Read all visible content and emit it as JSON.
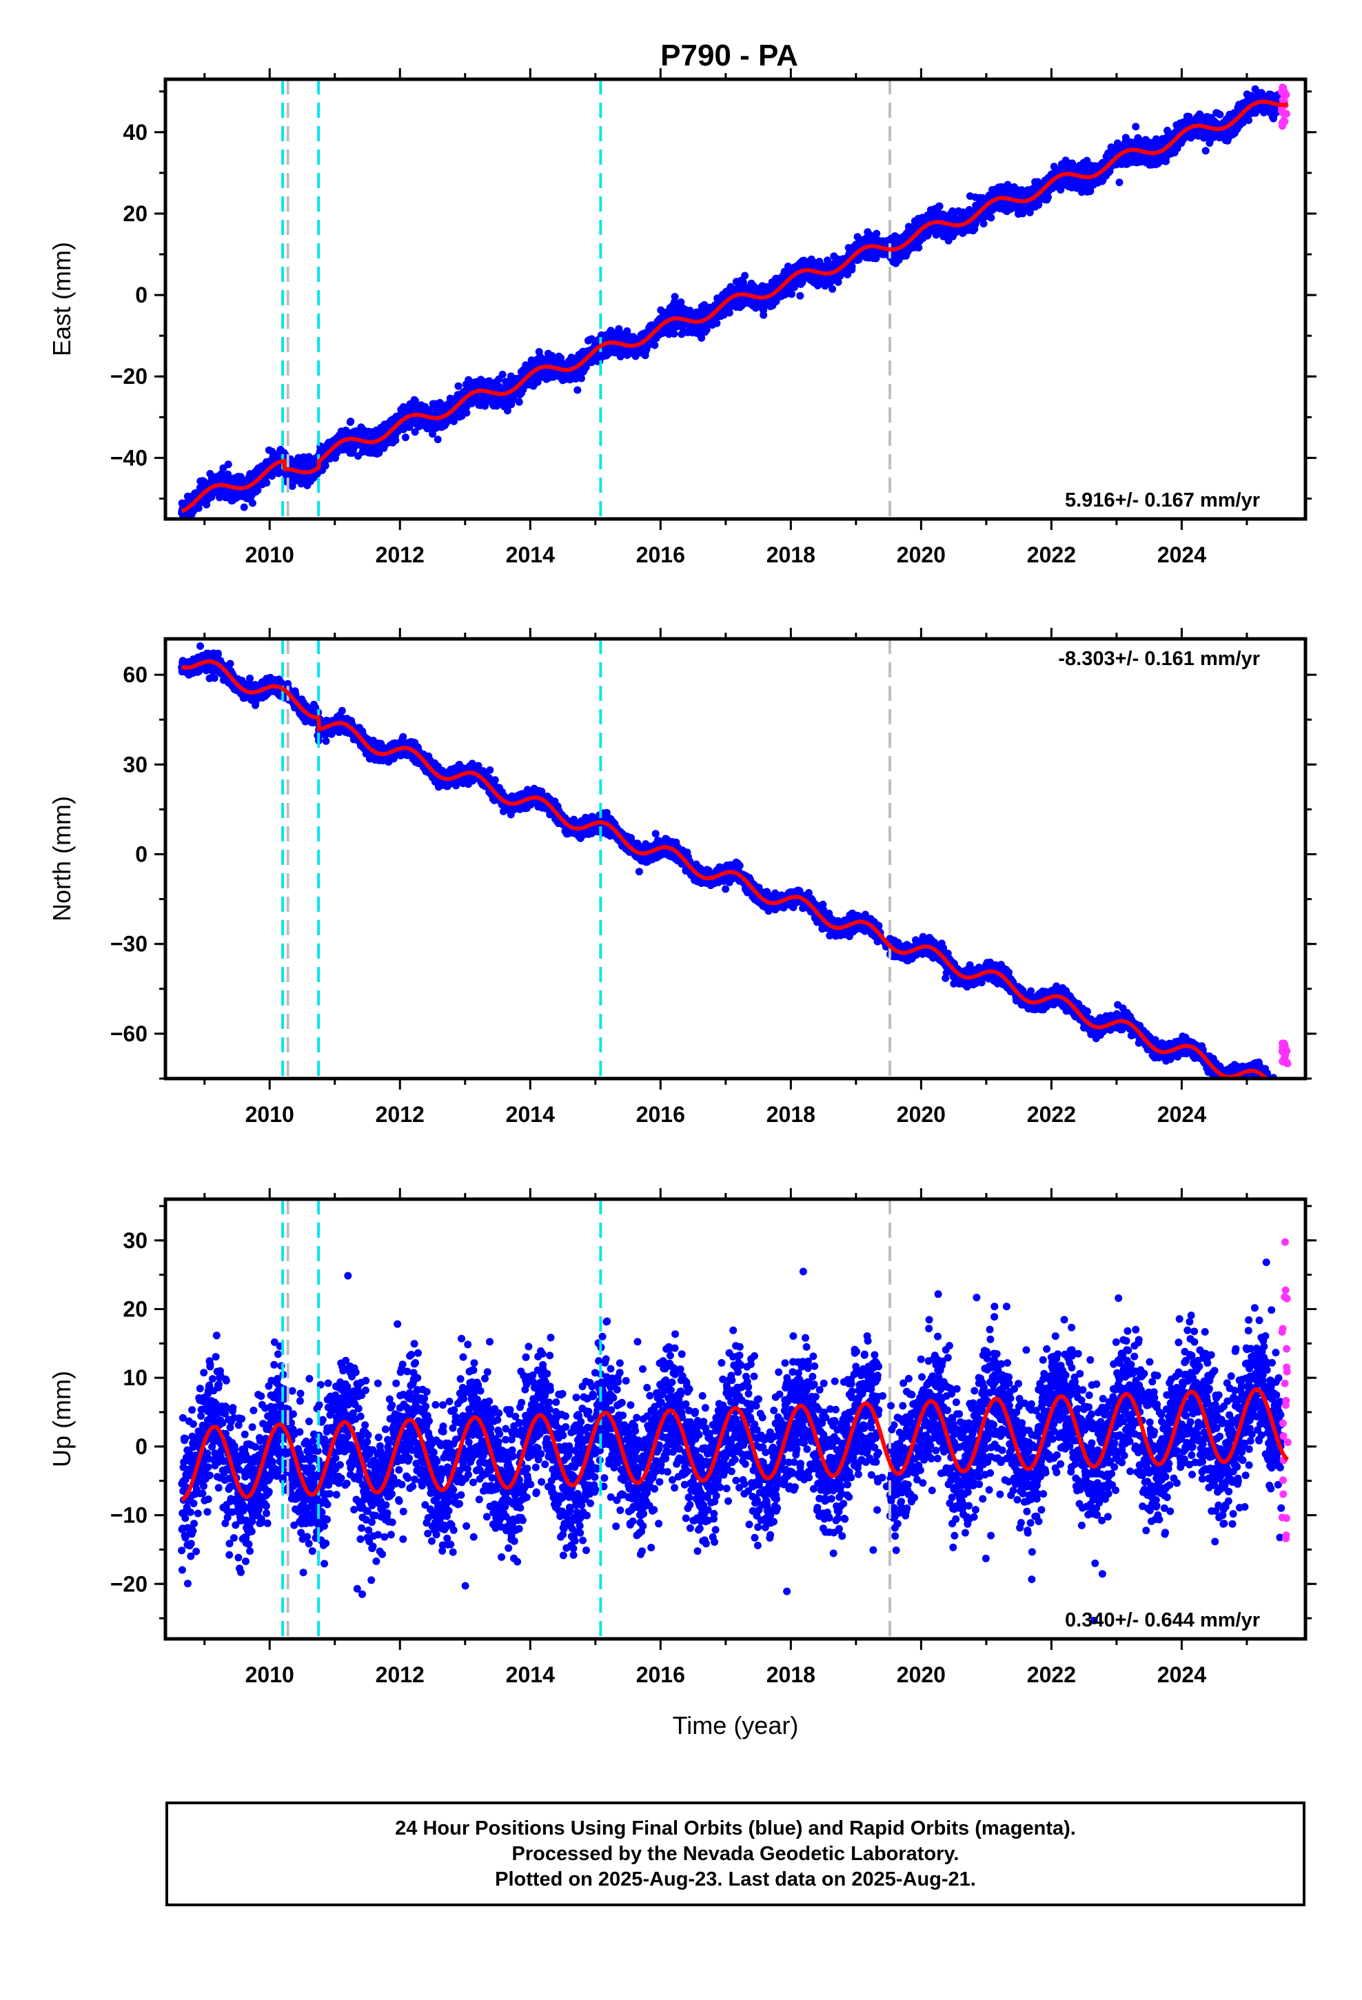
{
  "title": "P790 - PA",
  "colors": {
    "final_orbits": "#0000ff",
    "rapid_orbits": "#ff33ff",
    "model_fit": "#ff0000",
    "cyan_marker": "#00e5ee",
    "gray_marker": "#bfbfbf"
  },
  "chart_data": [
    {
      "type": "scatter",
      "name": "east",
      "ylabel": "East (mm)",
      "xlabel": "",
      "xlim": [
        2008.4,
        2025.9
      ],
      "ylim": [
        -55,
        53
      ],
      "xticks": [
        2010,
        2012,
        2014,
        2016,
        2018,
        2020,
        2022,
        2024
      ],
      "yticks": [
        -40,
        -20,
        0,
        20,
        40
      ],
      "rate_label": "5.916+/- 0.167 mm/yr",
      "rate_position": "bottom-right",
      "model": {
        "start": 2008.65,
        "end": 2025.63,
        "start_value": -51.5,
        "slope": 5.916,
        "annual_amplitude": 1.6,
        "scatter": 1.4,
        "offsets": [
          {
            "t": 2010.22,
            "dy": -2.0
          },
          {
            "t": 2010.75,
            "dy": 1.5
          }
        ]
      },
      "rapid_points": {
        "start": 2025.53,
        "end": 2025.63,
        "min": 41,
        "max": 51
      }
    },
    {
      "type": "scatter",
      "name": "north",
      "ylabel": "North (mm)",
      "xlabel": "",
      "xlim": [
        2008.4,
        2025.9
      ],
      "ylim": [
        -75,
        72
      ],
      "xticks": [
        2010,
        2012,
        2014,
        2016,
        2018,
        2020,
        2022,
        2024
      ],
      "yticks": [
        -60,
        -30,
        0,
        30,
        60
      ],
      "rate_label": "-8.303+/- 0.161 mm/yr",
      "rate_position": "top-right",
      "model": {
        "start": 2008.65,
        "end": 2025.63,
        "start_value": 65.5,
        "slope": -8.303,
        "annual_amplitude": 2.8,
        "scatter": 1.3,
        "offsets": [
          {
            "t": 2010.75,
            "dy": -4.0
          }
        ]
      },
      "rapid_points": {
        "start": 2025.53,
        "end": 2025.63,
        "min": -70,
        "max": -63
      }
    },
    {
      "type": "scatter",
      "name": "up",
      "ylabel": "Up (mm)",
      "xlabel": "Time (year)",
      "xlim": [
        2008.4,
        2025.9
      ],
      "ylim": [
        -28,
        36
      ],
      "xticks": [
        2010,
        2012,
        2014,
        2016,
        2018,
        2020,
        2022,
        2024
      ],
      "yticks": [
        -20,
        -10,
        0,
        10,
        20,
        30
      ],
      "rate_label": "0.340+/- 0.644 mm/yr",
      "rate_position": "bottom-right",
      "model": {
        "start": 2008.65,
        "end": 2025.63,
        "start_value": -2.5,
        "slope": 0.34,
        "annual_amplitude": 5.2,
        "scatter": 4.8,
        "offsets": []
      },
      "rapid_points": {
        "start": 2025.53,
        "end": 2025.63,
        "min": -14,
        "max": 30
      }
    }
  ],
  "markers": {
    "cyan": [
      2010.2,
      2010.75,
      2015.08
    ],
    "gray": [
      2010.28,
      2019.52
    ]
  },
  "footer": {
    "line1": "24 Hour Positions Using Final Orbits (blue) and Rapid Orbits (magenta).",
    "line2": "Processed by the Nevada Geodetic Laboratory.",
    "line3": "Plotted on 2025-Aug-23. Last data on 2025-Aug-21."
  }
}
